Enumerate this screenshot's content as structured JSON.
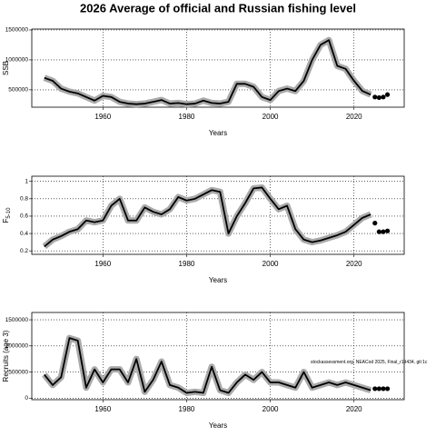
{
  "title": "2026 Average of official and Russian fishing level",
  "chart_data": [
    {
      "type": "line",
      "xlabel": "Years",
      "ylabel": "SSB",
      "xlim": [
        1943,
        2032
      ],
      "xticks": [
        1960,
        1980,
        2000,
        2020
      ],
      "ylim": [
        210000,
        1515000
      ],
      "yticks": [
        500000,
        1000000,
        1500000
      ],
      "grid": true,
      "x": [
        1946,
        1948,
        1950,
        1952,
        1954,
        1956,
        1958,
        1960,
        1962,
        1964,
        1966,
        1968,
        1970,
        1972,
        1974,
        1976,
        1978,
        1980,
        1982,
        1984,
        1986,
        1988,
        1990,
        1992,
        1994,
        1996,
        1998,
        2000,
        2002,
        2004,
        2006,
        2008,
        2010,
        2012,
        2014,
        2016,
        2018,
        2020,
        2022,
        2024
      ],
      "series": [
        {
          "color": "#000000",
          "values": [
            700000,
            650000,
            520000,
            470000,
            440000,
            380000,
            320000,
            400000,
            380000,
            300000,
            270000,
            260000,
            270000,
            300000,
            330000,
            270000,
            280000,
            260000,
            270000,
            320000,
            280000,
            270000,
            300000,
            600000,
            600000,
            550000,
            380000,
            330000,
            480000,
            520000,
            480000,
            650000,
            1000000,
            1250000,
            1330000,
            900000,
            850000,
            650000,
            480000,
            420000
          ]
        }
      ],
      "projection": {
        "x": [
          2025,
          2026,
          2027,
          2028
        ],
        "values": [
          380000,
          370000,
          380000,
          420000
        ]
      }
    },
    {
      "type": "line",
      "xlabel": "Years",
      "ylabel": "F",
      "ylabel_sub": "5-10",
      "xlim": [
        1943,
        2032
      ],
      "xticks": [
        1960,
        1980,
        2000,
        2020
      ],
      "ylim": [
        0.16,
        1.06
      ],
      "yticks": [
        0.2,
        0.4,
        0.6,
        0.8,
        1.0
      ],
      "grid": true,
      "x": [
        1946,
        1948,
        1950,
        1952,
        1954,
        1956,
        1958,
        1960,
        1962,
        1964,
        1966,
        1968,
        1970,
        1972,
        1974,
        1976,
        1978,
        1980,
        1982,
        1984,
        1986,
        1988,
        1990,
        1992,
        1994,
        1996,
        1998,
        2000,
        2002,
        2004,
        2006,
        2008,
        2010,
        2012,
        2014,
        2016,
        2018,
        2020,
        2022,
        2024
      ],
      "series": [
        {
          "color": "#000000",
          "values": [
            0.25,
            0.33,
            0.37,
            0.42,
            0.45,
            0.55,
            0.53,
            0.55,
            0.72,
            0.8,
            0.55,
            0.55,
            0.7,
            0.65,
            0.62,
            0.68,
            0.82,
            0.78,
            0.8,
            0.85,
            0.9,
            0.88,
            0.4,
            0.6,
            0.75,
            0.92,
            0.93,
            0.8,
            0.68,
            0.72,
            0.45,
            0.33,
            0.3,
            0.32,
            0.35,
            0.38,
            0.42,
            0.5,
            0.58,
            0.62
          ]
        }
      ],
      "projection": {
        "x": [
          2025,
          2026,
          2027,
          2028
        ],
        "values": [
          0.52,
          0.42,
          0.42,
          0.43
        ]
      }
    },
    {
      "type": "line",
      "xlabel": "Years",
      "ylabel": "Recruits (age 3)",
      "annotation": "stockassessment.org, NEACod 2025, Final_r19434, git:1c",
      "xlim": [
        1943,
        2032
      ],
      "xticks": [
        1960,
        1980,
        2000,
        2020
      ],
      "ylim": [
        -30000,
        1640000
      ],
      "yticks": [
        0,
        500000,
        1000000,
        1500000
      ],
      "grid": true,
      "x": [
        1946,
        1948,
        1950,
        1952,
        1954,
        1956,
        1958,
        1960,
        1962,
        1964,
        1966,
        1968,
        1970,
        1972,
        1974,
        1976,
        1978,
        1980,
        1982,
        1984,
        1986,
        1988,
        1990,
        1992,
        1994,
        1996,
        1998,
        2000,
        2002,
        2004,
        2006,
        2008,
        2010,
        2012,
        2014,
        2016,
        2018,
        2020,
        2022,
        2024
      ],
      "series": [
        {
          "color": "#000000",
          "values": [
            450000,
            250000,
            400000,
            1150000,
            1100000,
            200000,
            550000,
            300000,
            550000,
            550000,
            300000,
            750000,
            120000,
            350000,
            700000,
            250000,
            200000,
            100000,
            120000,
            100000,
            600000,
            150000,
            100000,
            300000,
            450000,
            350000,
            500000,
            300000,
            300000,
            250000,
            200000,
            500000,
            200000,
            250000,
            300000,
            250000,
            300000,
            250000,
            200000,
            150000
          ]
        }
      ],
      "projection": {
        "x": [
          2025,
          2026,
          2027,
          2028
        ],
        "values": [
          180000,
          180000,
          180000,
          180000
        ]
      }
    }
  ]
}
